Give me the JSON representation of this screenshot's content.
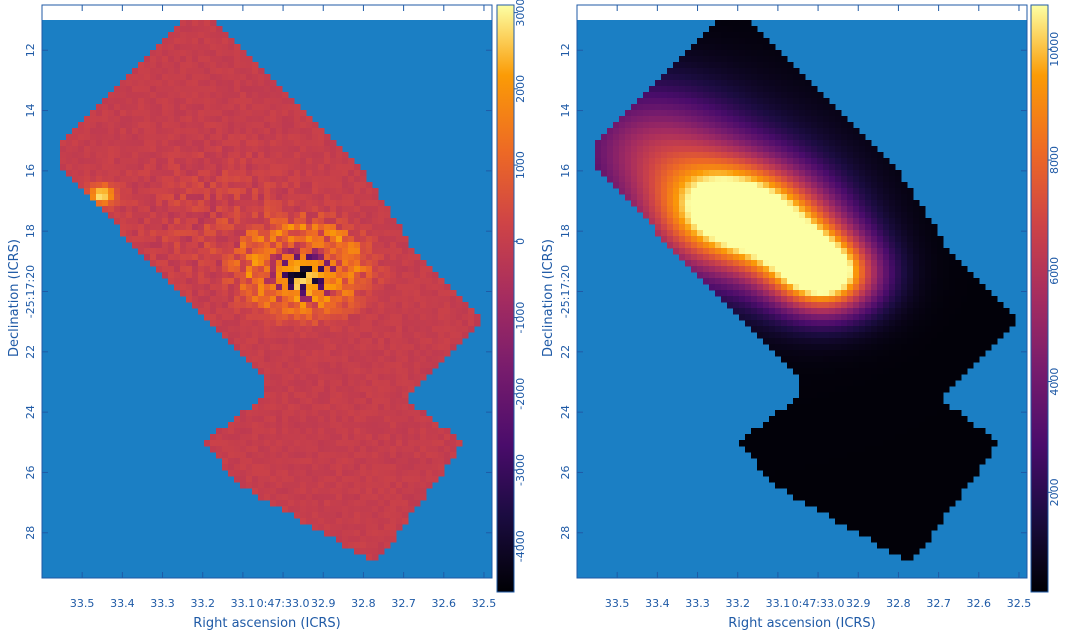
{
  "colors": {
    "background_blue": "#1b7fc4",
    "label_blue": "#1f5aa6",
    "residual_flat": "#e05a3c"
  },
  "chart_data": [
    {
      "type": "heatmap",
      "title": "",
      "xlabel": "Right ascension (ICRS)",
      "ylabel": "Declination (ICRS)",
      "x_ticks": [
        "33.5",
        "33.4",
        "33.3",
        "33.2",
        "33.1",
        "0:47:33.0",
        "32.9",
        "32.8",
        "32.7",
        "32.6",
        "32.5"
      ],
      "y_ticks": [
        "12",
        "14",
        "16",
        "18",
        "-25:17:20",
        "22",
        "24",
        "26",
        "28"
      ],
      "colorbar": {
        "colormap": "inferno",
        "range": [
          -4600,
          3100
        ],
        "ticks": [
          "-4000",
          "-3000",
          "-2000",
          "-1000",
          "0",
          "1000",
          "2000",
          "3000"
        ]
      },
      "footprint": {
        "ra_dec_vertices": [
          [
            33.25,
            11.0
          ],
          [
            33.18,
            11.0
          ],
          [
            32.8,
            16.0
          ],
          [
            32.68,
            18.5
          ],
          [
            32.5,
            21.0
          ],
          [
            32.7,
            23.5
          ],
          [
            32.55,
            25.0
          ],
          [
            32.77,
            29.0
          ],
          [
            33.1,
            26.5
          ],
          [
            33.2,
            25.0
          ],
          [
            33.05,
            23.5
          ],
          [
            33.05,
            22.8
          ],
          [
            33.55,
            16.0
          ],
          [
            33.55,
            15.0
          ]
        ],
        "ra_range": [
          33.6,
          32.48
        ],
        "dec_range": [
          10.5,
          29.5
        ]
      },
      "features": [
        {
          "ra": 32.95,
          "dec": 19.5,
          "amplitude": -4600,
          "kind": "dipole-core"
        },
        {
          "ra": 32.95,
          "dec": 19.3,
          "amplitude": 2500,
          "kind": "dipole-ring"
        },
        {
          "ra": 33.15,
          "dec": 17.8,
          "amplitude": 900,
          "kind": "residual"
        },
        {
          "ra": 33.45,
          "dec": 16.8,
          "amplitude": 3000,
          "kind": "hot-pixel"
        }
      ]
    },
    {
      "type": "heatmap",
      "title": "",
      "xlabel": "Right ascension (ICRS)",
      "ylabel": "Declination (ICRS)",
      "x_ticks": [
        "33.5",
        "33.4",
        "33.3",
        "33.2",
        "33.1",
        "0:47:33.0",
        "32.9",
        "32.8",
        "32.7",
        "32.6",
        "32.5"
      ],
      "y_ticks": [
        "12",
        "14",
        "16",
        "18",
        "-25:17:20",
        "22",
        "24",
        "26",
        "28"
      ],
      "colorbar": {
        "colormap": "inferno",
        "range": [
          200,
          10800
        ],
        "ticks": [
          "2000",
          "4000",
          "6000",
          "8000",
          "10000"
        ]
      },
      "sources": [
        {
          "ra": 32.98,
          "dec": 19.5,
          "peak": 10500,
          "width": 0.9
        },
        {
          "ra": 33.25,
          "dec": 17.5,
          "peak": 6500,
          "width": 1.3
        },
        {
          "ra": 33.17,
          "dec": 17.2,
          "peak": 4500,
          "width": 1.2
        },
        {
          "ra": 33.07,
          "dec": 18.0,
          "peak": 3500,
          "width": 1.1
        },
        {
          "ra": 33.05,
          "dec": 18.6,
          "peak": 3000,
          "width": 1.0
        },
        {
          "ra": 33.45,
          "dec": 14.9,
          "peak": 2600,
          "width": 1.4
        },
        {
          "ra": 33.35,
          "dec": 15.6,
          "peak": 2000,
          "width": 1.3
        },
        {
          "ra": 33.3,
          "dec": 17.0,
          "peak": 1500,
          "width": 2.5
        }
      ],
      "background_level": 300
    }
  ]
}
